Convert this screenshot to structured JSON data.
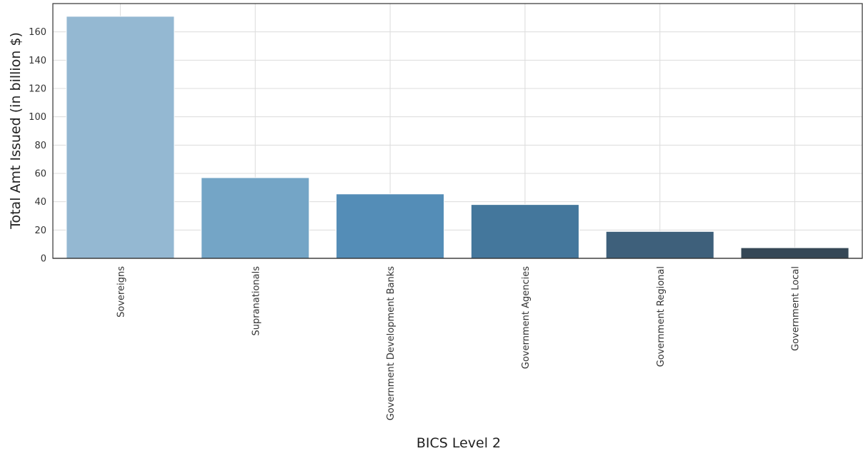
{
  "chart_data": {
    "type": "bar",
    "categories": [
      "Sovereigns",
      "Supranationals",
      "Government Development Banks",
      "Government Agencies",
      "Government Regional",
      "Government Local"
    ],
    "values": [
      171,
      57,
      45.5,
      38,
      19,
      7.5
    ],
    "colors": [
      "#94b8d2",
      "#74a5c6",
      "#548db7",
      "#44779c",
      "#3e607b",
      "#354756"
    ],
    "title": "",
    "xlabel": "BICS Level 2",
    "ylabel": "Total Amt Issued (in billion $)",
    "ylim": [
      0,
      180
    ],
    "yticks": [
      0,
      20,
      40,
      60,
      80,
      100,
      120,
      140,
      160
    ],
    "grid": true
  }
}
